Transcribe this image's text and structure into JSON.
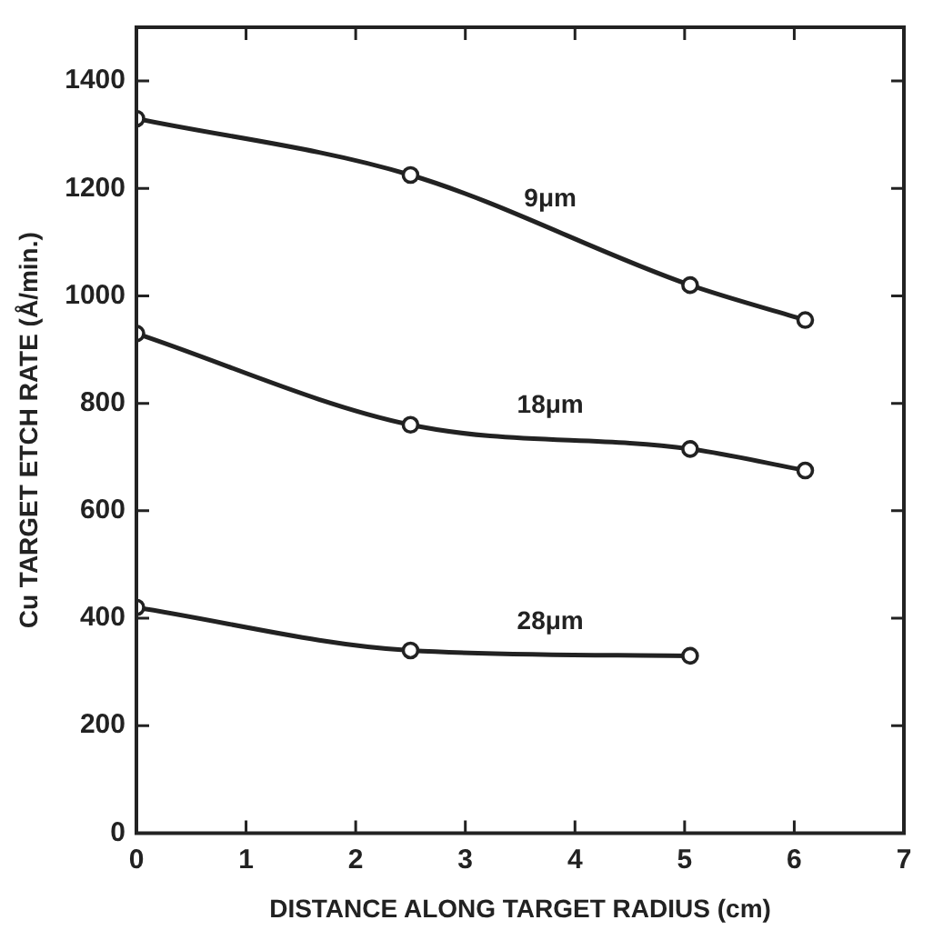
{
  "chart_data": {
    "type": "line",
    "xlabel": "DISTANCE ALONG TARGET RADIUS (cm)",
    "ylabel": "Cu TARGET ETCH RATE (Å/min.)",
    "xlim": [
      0,
      7
    ],
    "xticks": [
      0,
      1,
      2,
      3,
      4,
      5,
      6,
      7
    ],
    "ylim": [
      0,
      1500
    ],
    "yticks": [
      0,
      200,
      400,
      600,
      800,
      1000,
      1200,
      1400
    ],
    "grid": false,
    "legend": false,
    "marker": "circle",
    "line_style": "solid",
    "series": [
      {
        "name": "9μm",
        "color": "#222222",
        "x": [
          0,
          2.5,
          5.05,
          6.1
        ],
        "values": [
          1330,
          1225,
          1020,
          955
        ]
      },
      {
        "name": "18μm",
        "color": "#222222",
        "x": [
          0,
          2.5,
          5.05,
          6.1
        ],
        "values": [
          930,
          760,
          715,
          675
        ]
      },
      {
        "name": "28μm",
        "color": "#222222",
        "x": [
          0,
          2.5,
          5.05
        ],
        "values": [
          420,
          340,
          330
        ]
      }
    ]
  }
}
